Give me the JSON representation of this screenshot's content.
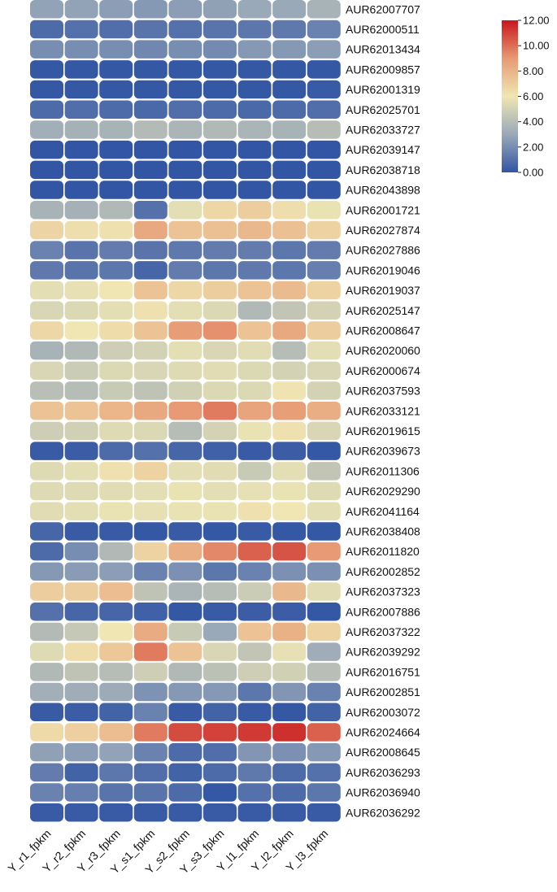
{
  "chart_data": {
    "type": "heatmap",
    "title": "",
    "xlabel": "",
    "ylabel": "",
    "columns": [
      "Y_r1_fpkm",
      "Y_r2_fpkm",
      "Y_r3_fpkm",
      "Y_s1_fpkm",
      "Y_s2_fpkm",
      "Y_s3_fpkm",
      "Y_l1_fpkm",
      "Y_l2_fpkm",
      "Y_l3_fpkm"
    ],
    "rows": [
      "AUR62007707",
      "AUR62000511",
      "AUR62013434",
      "AUR62009857",
      "AUR62001319",
      "AUR62025701",
      "AUR62033727",
      "AUR62039147",
      "AUR62038718",
      "AUR62043898",
      "AUR62001721",
      "AUR62027874",
      "AUR62027886",
      "AUR62019046",
      "AUR62019037",
      "AUR62025147",
      "AUR62008647",
      "AUR62020060",
      "AUR62000674",
      "AUR62037593",
      "AUR62033121",
      "AUR62019615",
      "AUR62039673",
      "AUR62011306",
      "AUR62029290",
      "AUR62041164",
      "AUR62038408",
      "AUR62011820",
      "AUR62002852",
      "AUR62037323",
      "AUR62007886",
      "AUR62037322",
      "AUR62039292",
      "AUR62016751",
      "AUR62002851",
      "AUR62003072",
      "AUR62024664",
      "AUR62008645",
      "AUR62036293",
      "AUR62036940",
      "AUR62036292"
    ],
    "values": [
      [
        2.8,
        2.8,
        2.6,
        2.4,
        2.6,
        2.7,
        3.0,
        3.0,
        3.5
      ],
      [
        0.8,
        1.0,
        0.9,
        1.1,
        1.0,
        1.1,
        1.2,
        1.3,
        1.6
      ],
      [
        2.0,
        2.0,
        2.0,
        1.8,
        2.0,
        1.9,
        2.4,
        2.4,
        2.6
      ],
      [
        0.1,
        0.1,
        0.1,
        0.1,
        0.1,
        0.1,
        0.1,
        0.1,
        0.1
      ],
      [
        0.1,
        0.1,
        0.1,
        0.1,
        0.1,
        0.1,
        0.1,
        0.1,
        0.2
      ],
      [
        0.8,
        0.9,
        0.8,
        0.7,
        0.9,
        0.8,
        0.7,
        0.8,
        0.9
      ],
      [
        3.3,
        3.4,
        3.5,
        3.9,
        3.6,
        3.8,
        3.6,
        3.5,
        4.0
      ],
      [
        0.0,
        0.0,
        0.0,
        0.0,
        0.0,
        0.0,
        0.0,
        0.0,
        0.0
      ],
      [
        0.0,
        0.0,
        0.0,
        0.0,
        0.0,
        0.0,
        0.0,
        0.0,
        0.0
      ],
      [
        0.0,
        0.0,
        0.0,
        0.0,
        0.0,
        0.0,
        0.0,
        0.0,
        0.0
      ],
      [
        3.5,
        3.4,
        3.8,
        1.0,
        5.6,
        6.6,
        7.0,
        6.3,
        5.8
      ],
      [
        6.7,
        6.3,
        6.2,
        8.4,
        7.4,
        7.5,
        7.8,
        7.5,
        6.8
      ],
      [
        1.6,
        1.1,
        1.4,
        1.1,
        1.3,
        1.4,
        1.4,
        1.2,
        1.4
      ],
      [
        1.3,
        1.1,
        1.2,
        0.6,
        1.4,
        1.2,
        1.3,
        1.2,
        1.5
      ],
      [
        5.6,
        5.7,
        6.0,
        7.4,
        6.6,
        7.0,
        7.4,
        7.7,
        6.8
      ],
      [
        5.2,
        5.3,
        5.6,
        6.2,
        5.6,
        5.3,
        3.8,
        4.4,
        5.0
      ],
      [
        6.6,
        6.0,
        6.4,
        7.4,
        8.9,
        9.2,
        7.4,
        8.4,
        7.0
      ],
      [
        3.5,
        3.8,
        4.8,
        5.0,
        5.6,
        5.2,
        5.5,
        4.0,
        5.6
      ],
      [
        5.2,
        4.7,
        5.3,
        5.2,
        5.4,
        5.5,
        5.3,
        5.0,
        5.2
      ],
      [
        4.1,
        4.0,
        4.6,
        4.3,
        4.9,
        5.3,
        5.3,
        6.1,
        5.0
      ],
      [
        7.4,
        7.4,
        7.9,
        8.4,
        9.0,
        9.7,
        8.6,
        8.8,
        8.2
      ],
      [
        4.8,
        4.9,
        5.4,
        5.3,
        4.0,
        5.0,
        5.8,
        6.2,
        5.2
      ],
      [
        0.2,
        0.3,
        0.8,
        1.0,
        0.6,
        0.4,
        0.2,
        0.3,
        0.1
      ],
      [
        5.4,
        5.6,
        6.2,
        6.8,
        5.6,
        5.5,
        4.6,
        5.6,
        4.4
      ],
      [
        5.4,
        5.4,
        5.5,
        5.6,
        5.8,
        5.6,
        5.7,
        5.8,
        5.4
      ],
      [
        5.5,
        5.6,
        5.8,
        5.7,
        5.8,
        5.8,
        6.2,
        6.0,
        5.6
      ],
      [
        0.6,
        0.2,
        0.2,
        0.1,
        0.2,
        0.1,
        0.2,
        0.1,
        0.1
      ],
      [
        0.8,
        2.0,
        3.8,
        6.8,
        8.2,
        9.4,
        10.3,
        10.6,
        9.0
      ],
      [
        2.4,
        2.5,
        2.6,
        1.6,
        2.1,
        1.2,
        1.6,
        2.1,
        2.1
      ],
      [
        7.0,
        7.0,
        7.6,
        4.3,
        3.6,
        4.0,
        4.7,
        7.8,
        5.5
      ],
      [
        1.0,
        0.6,
        0.6,
        0.4,
        0.1,
        0.2,
        0.3,
        0.3,
        0.1
      ],
      [
        3.9,
        4.5,
        6.0,
        8.3,
        4.6,
        3.0,
        7.4,
        8.1,
        6.8
      ],
      [
        5.4,
        6.4,
        7.2,
        9.7,
        7.4,
        5.2,
        4.4,
        5.7,
        3.2
      ],
      [
        3.8,
        4.3,
        4.0,
        4.8,
        3.8,
        4.2,
        4.8,
        4.9,
        4.1
      ],
      [
        3.3,
        3.2,
        3.1,
        2.2,
        2.4,
        2.4,
        1.2,
        2.3,
        1.6
      ],
      [
        0.2,
        0.3,
        0.5,
        1.6,
        0.2,
        0.5,
        0.2,
        0.1,
        0.5
      ],
      [
        6.5,
        6.9,
        7.6,
        9.7,
        10.8,
        11.0,
        11.2,
        11.4,
        10.3
      ],
      [
        2.7,
        2.6,
        2.8,
        1.6,
        0.8,
        0.9,
        2.3,
        2.1,
        2.4
      ],
      [
        1.4,
        0.5,
        1.2,
        0.9,
        0.5,
        0.8,
        1.3,
        0.8,
        1.0
      ],
      [
        1.6,
        1.5,
        1.1,
        1.1,
        0.8,
        0.1,
        1.0,
        0.8,
        1.2
      ],
      [
        0.2,
        0.2,
        0.2,
        0.2,
        0.2,
        0.2,
        0.2,
        0.2,
        0.2
      ]
    ],
    "colorbar": {
      "min": 0,
      "max": 12,
      "ticks": [
        "0.00",
        "2.00",
        "4.00",
        "6.00",
        "8.00",
        "10.00",
        "12.00"
      ],
      "palette": [
        "#3255a4",
        "#9aa9b8",
        "#efe6b3",
        "#e79a73",
        "#c8161d"
      ]
    },
    "legend_placement": "top-right",
    "grid": false
  }
}
